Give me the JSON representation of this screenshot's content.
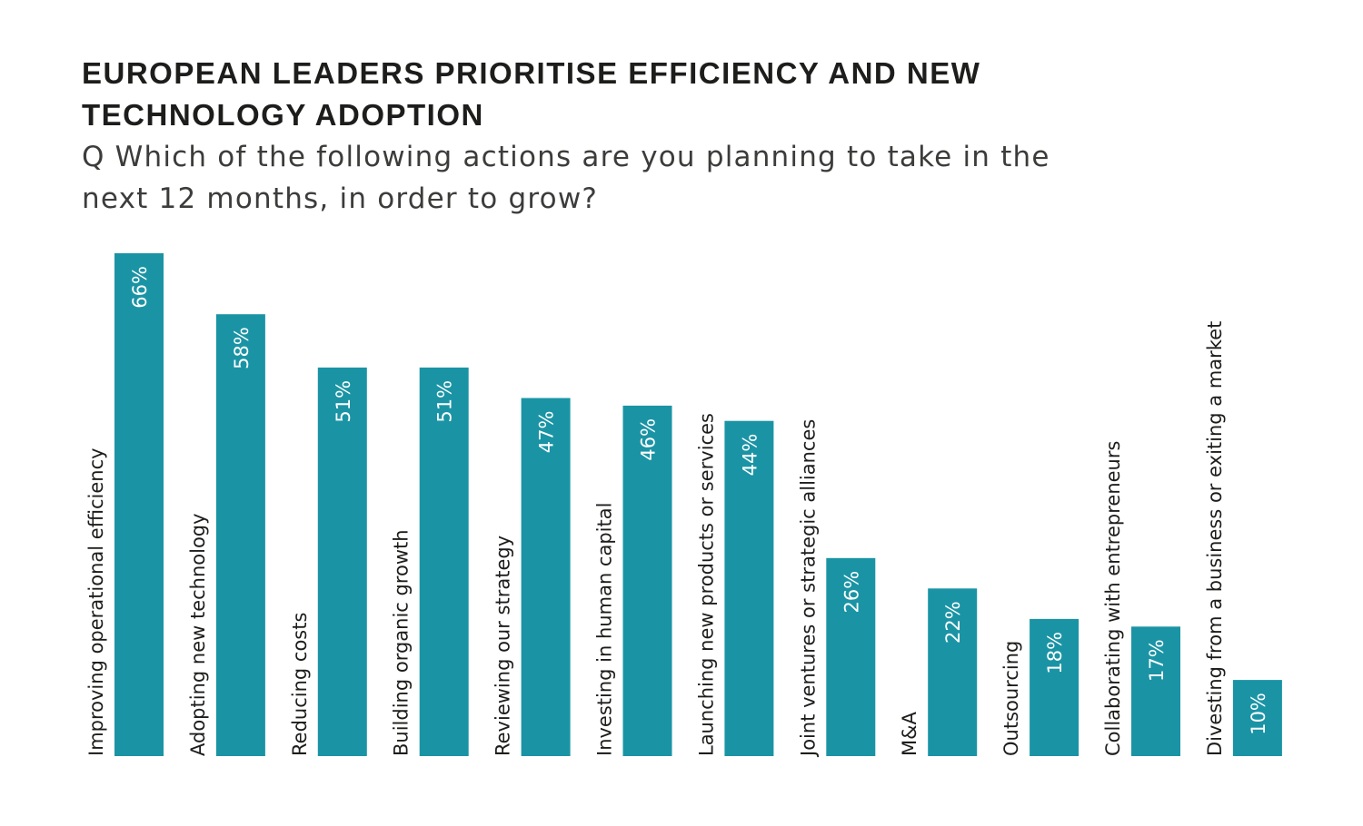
{
  "header": {
    "title": "EUROPEAN LEADERS PRIORITISE EFFICIENCY AND NEW TECHNOLOGY ADOPTION",
    "subtitle": "Q Which of the following actions are you planning to take in the next 12 months, in order to grow?"
  },
  "chart_data": {
    "type": "bar",
    "orientation": "vertical",
    "categories": [
      "Improving operational efficiency",
      "Adopting new technology",
      "Reducing costs",
      "Building organic growth",
      "Reviewing our strategy",
      "Investing in human capital",
      "Launching new products or services",
      "Joint ventures or strategic alliances",
      "M&A",
      "Outsourcing",
      "Collaborating with entrepreneurs",
      "Divesting from a business or exiting a market"
    ],
    "values": [
      66,
      58,
      51,
      51,
      47,
      46,
      44,
      26,
      22,
      18,
      17,
      10
    ],
    "value_labels": [
      "66%",
      "58%",
      "51%",
      "51%",
      "47%",
      "46%",
      "44%",
      "26%",
      "22%",
      "18%",
      "17%",
      "10%"
    ],
    "ylim": [
      0,
      66
    ],
    "bar_color": "#1a94a5",
    "grid": false,
    "legend": "none"
  }
}
